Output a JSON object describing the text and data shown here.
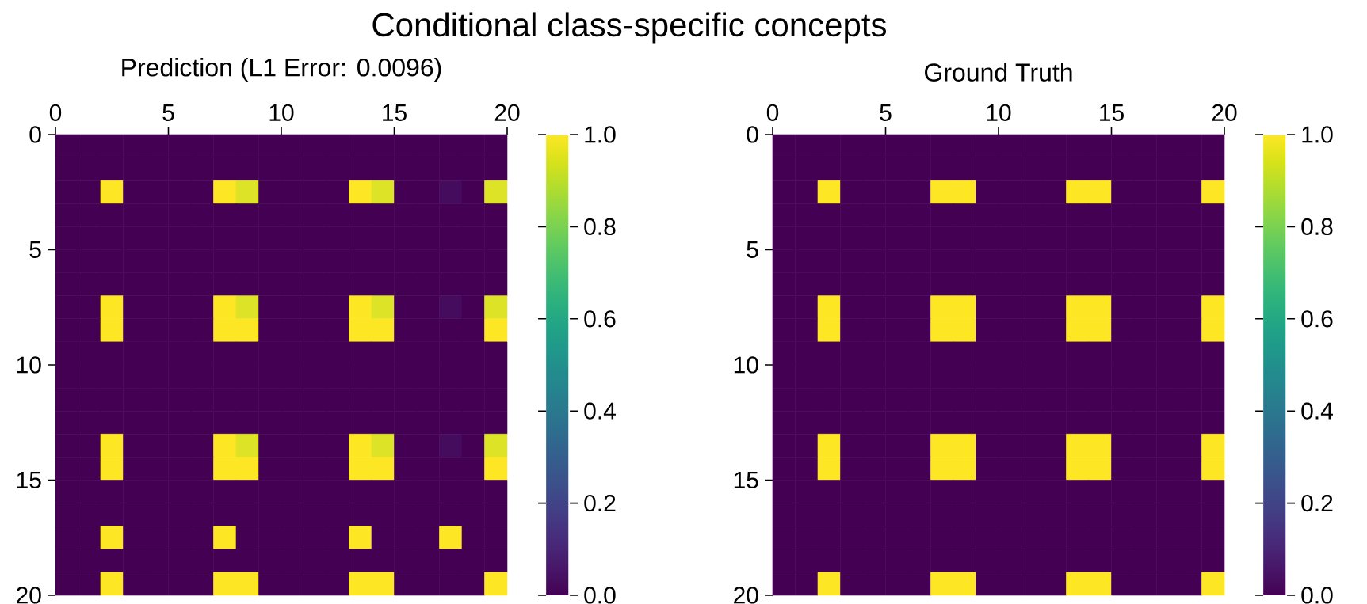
{
  "chart_data": [
    {
      "type": "heatmap",
      "title": "Conditional class-specific concepts",
      "subtitle": "Prediction (L1 Error: 0.0096)",
      "x": [
        0.5,
        1.5,
        2.5,
        3.5,
        4.5,
        5.5,
        6.5,
        7.5,
        8.5,
        9.5,
        10.5,
        11.5,
        12.5,
        13.5,
        14.5,
        15.5,
        16.5,
        17.5,
        18.5,
        19.5
      ],
      "y": [
        0.5,
        1.5,
        2.5,
        3.5,
        4.5,
        5.5,
        6.5,
        7.5,
        8.5,
        9.5,
        10.5,
        11.5,
        12.5,
        13.5,
        14.5,
        15.5,
        16.5,
        17.5,
        18.5,
        19.5
      ],
      "xlim": [
        0,
        20
      ],
      "xticks": [
        0,
        5,
        10,
        15,
        20
      ],
      "ylim": [
        20,
        0
      ],
      "yticks": [
        0,
        5,
        10,
        15,
        20
      ],
      "clim": [
        0,
        1
      ],
      "cticks": [
        {
          "value": 0,
          "label": "0.0"
        },
        {
          "value": 0.2,
          "label": "0.2"
        },
        {
          "value": 0.4,
          "label": "0.4"
        },
        {
          "value": 0.6,
          "label": "0.6"
        },
        {
          "value": 0.8,
          "label": "0.8"
        },
        {
          "value": 1,
          "label": "1.0"
        }
      ],
      "cells": [
        [
          0,
          0,
          0,
          0,
          0,
          0,
          0,
          0,
          0,
          0,
          0,
          0,
          0,
          0,
          0,
          0,
          0,
          0,
          0,
          0
        ],
        [
          0,
          0,
          0,
          0,
          0,
          0,
          0,
          0,
          0,
          0,
          0,
          0,
          0,
          0,
          0,
          0,
          0,
          0,
          0,
          0
        ],
        [
          0,
          0,
          1,
          0,
          0,
          0,
          0,
          1,
          0.95,
          0,
          0,
          0,
          0,
          1,
          0.95,
          0,
          0,
          0.03,
          0,
          0.95
        ],
        [
          0,
          0,
          0,
          0,
          0,
          0,
          0,
          0,
          0,
          0,
          0,
          0,
          0,
          0,
          0,
          0,
          0,
          0,
          0,
          0
        ],
        [
          0,
          0,
          0,
          0,
          0,
          0,
          0,
          0,
          0,
          0,
          0,
          0,
          0,
          0,
          0,
          0,
          0,
          0,
          0,
          0
        ],
        [
          0,
          0,
          0,
          0,
          0,
          0,
          0,
          0,
          0,
          0,
          0,
          0,
          0,
          0,
          0,
          0,
          0,
          0,
          0,
          0
        ],
        [
          0,
          0,
          0,
          0,
          0,
          0,
          0,
          0,
          0,
          0,
          0,
          0,
          0,
          0,
          0,
          0,
          0,
          0,
          0,
          0
        ],
        [
          0,
          0,
          1,
          0,
          0,
          0,
          0,
          1,
          0.95,
          0,
          0,
          0,
          0,
          1,
          0.95,
          0,
          0,
          0.03,
          0,
          0.95
        ],
        [
          0,
          0,
          1,
          0,
          0,
          0,
          0,
          1,
          1,
          0,
          0,
          0,
          0,
          1,
          1,
          0,
          0,
          0,
          0,
          1
        ],
        [
          0,
          0,
          0,
          0,
          0,
          0,
          0,
          0,
          0,
          0,
          0,
          0,
          0,
          0,
          0,
          0,
          0,
          0,
          0,
          0
        ],
        [
          0,
          0,
          0,
          0,
          0,
          0,
          0,
          0,
          0,
          0,
          0,
          0,
          0,
          0,
          0,
          0,
          0,
          0,
          0,
          0
        ],
        [
          0,
          0,
          0,
          0,
          0,
          0,
          0,
          0,
          0,
          0,
          0,
          0,
          0,
          0,
          0,
          0,
          0,
          0,
          0,
          0
        ],
        [
          0,
          0,
          0,
          0,
          0,
          0,
          0,
          0,
          0,
          0,
          0,
          0,
          0,
          0,
          0,
          0,
          0,
          0,
          0,
          0
        ],
        [
          0,
          0,
          1,
          0,
          0,
          0,
          0,
          1,
          0.95,
          0,
          0,
          0,
          0,
          1,
          0.95,
          0,
          0,
          0.03,
          0,
          0.95
        ],
        [
          0,
          0,
          1,
          0,
          0,
          0,
          0,
          1,
          1,
          0,
          0,
          0,
          0,
          1,
          1,
          0,
          0,
          0,
          0,
          1
        ],
        [
          0,
          0,
          0,
          0,
          0,
          0,
          0,
          0,
          0,
          0,
          0,
          0,
          0,
          0,
          0,
          0,
          0,
          0,
          0,
          0
        ],
        [
          0,
          0,
          0,
          0,
          0,
          0,
          0,
          0,
          0,
          0,
          0,
          0,
          0,
          0,
          0,
          0,
          0,
          0,
          0,
          0
        ],
        [
          0,
          0,
          1,
          0,
          0,
          0,
          0,
          1,
          0,
          0,
          0,
          0,
          0,
          1,
          0,
          0,
          0,
          1,
          0,
          0
        ],
        [
          0,
          0,
          0,
          0,
          0,
          0,
          0,
          0,
          0,
          0,
          0,
          0,
          0,
          0,
          0,
          0,
          0,
          0,
          0,
          0
        ],
        [
          0,
          0,
          1,
          0,
          0,
          0,
          0,
          1,
          1,
          0,
          0,
          0,
          0,
          1,
          1,
          0,
          0,
          0,
          0,
          1
        ]
      ]
    },
    {
      "type": "heatmap",
      "title": "Ground Truth",
      "x": [
        0.5,
        1.5,
        2.5,
        3.5,
        4.5,
        5.5,
        6.5,
        7.5,
        8.5,
        9.5,
        10.5,
        11.5,
        12.5,
        13.5,
        14.5,
        15.5,
        16.5,
        17.5,
        18.5,
        19.5
      ],
      "y": [
        0.5,
        1.5,
        2.5,
        3.5,
        4.5,
        5.5,
        6.5,
        7.5,
        8.5,
        9.5,
        10.5,
        11.5,
        12.5,
        13.5,
        14.5,
        15.5,
        16.5,
        17.5,
        18.5,
        19.5
      ],
      "xlim": [
        0,
        20
      ],
      "xticks": [
        0,
        5,
        10,
        15,
        20
      ],
      "ylim": [
        20,
        0
      ],
      "yticks": [
        0,
        5,
        10,
        15,
        20
      ],
      "clim": [
        0,
        1
      ],
      "cticks": [
        {
          "value": 0,
          "label": "0.0"
        },
        {
          "value": 0.2,
          "label": "0.2"
        },
        {
          "value": 0.4,
          "label": "0.4"
        },
        {
          "value": 0.6,
          "label": "0.6"
        },
        {
          "value": 0.8,
          "label": "0.8"
        },
        {
          "value": 1,
          "label": "1.0"
        }
      ],
      "cells": [
        [
          0,
          0,
          0,
          0,
          0,
          0,
          0,
          0,
          0,
          0,
          0,
          0,
          0,
          0,
          0,
          0,
          0,
          0,
          0,
          0
        ],
        [
          0,
          0,
          0,
          0,
          0,
          0,
          0,
          0,
          0,
          0,
          0,
          0,
          0,
          0,
          0,
          0,
          0,
          0,
          0,
          0
        ],
        [
          0,
          0,
          1,
          0,
          0,
          0,
          0,
          1,
          1,
          0,
          0,
          0,
          0,
          1,
          1,
          0,
          0,
          0,
          0,
          1
        ],
        [
          0,
          0,
          0,
          0,
          0,
          0,
          0,
          0,
          0,
          0,
          0,
          0,
          0,
          0,
          0,
          0,
          0,
          0,
          0,
          0
        ],
        [
          0,
          0,
          0,
          0,
          0,
          0,
          0,
          0,
          0,
          0,
          0,
          0,
          0,
          0,
          0,
          0,
          0,
          0,
          0,
          0
        ],
        [
          0,
          0,
          0,
          0,
          0,
          0,
          0,
          0,
          0,
          0,
          0,
          0,
          0,
          0,
          0,
          0,
          0,
          0,
          0,
          0
        ],
        [
          0,
          0,
          0,
          0,
          0,
          0,
          0,
          0,
          0,
          0,
          0,
          0,
          0,
          0,
          0,
          0,
          0,
          0,
          0,
          0
        ],
        [
          0,
          0,
          1,
          0,
          0,
          0,
          0,
          1,
          1,
          0,
          0,
          0,
          0,
          1,
          1,
          0,
          0,
          0,
          0,
          1
        ],
        [
          0,
          0,
          1,
          0,
          0,
          0,
          0,
          1,
          1,
          0,
          0,
          0,
          0,
          1,
          1,
          0,
          0,
          0,
          0,
          1
        ],
        [
          0,
          0,
          0,
          0,
          0,
          0,
          0,
          0,
          0,
          0,
          0,
          0,
          0,
          0,
          0,
          0,
          0,
          0,
          0,
          0
        ],
        [
          0,
          0,
          0,
          0,
          0,
          0,
          0,
          0,
          0,
          0,
          0,
          0,
          0,
          0,
          0,
          0,
          0,
          0,
          0,
          0
        ],
        [
          0,
          0,
          0,
          0,
          0,
          0,
          0,
          0,
          0,
          0,
          0,
          0,
          0,
          0,
          0,
          0,
          0,
          0,
          0,
          0
        ],
        [
          0,
          0,
          0,
          0,
          0,
          0,
          0,
          0,
          0,
          0,
          0,
          0,
          0,
          0,
          0,
          0,
          0,
          0,
          0,
          0
        ],
        [
          0,
          0,
          1,
          0,
          0,
          0,
          0,
          1,
          1,
          0,
          0,
          0,
          0,
          1,
          1,
          0,
          0,
          0,
          0,
          1
        ],
        [
          0,
          0,
          1,
          0,
          0,
          0,
          0,
          1,
          1,
          0,
          0,
          0,
          0,
          1,
          1,
          0,
          0,
          0,
          0,
          1
        ],
        [
          0,
          0,
          0,
          0,
          0,
          0,
          0,
          0,
          0,
          0,
          0,
          0,
          0,
          0,
          0,
          0,
          0,
          0,
          0,
          0
        ],
        [
          0,
          0,
          0,
          0,
          0,
          0,
          0,
          0,
          0,
          0,
          0,
          0,
          0,
          0,
          0,
          0,
          0,
          0,
          0,
          0
        ],
        [
          0,
          0,
          0,
          0,
          0,
          0,
          0,
          0,
          0,
          0,
          0,
          0,
          0,
          0,
          0,
          0,
          0,
          0,
          0,
          0
        ],
        [
          0,
          0,
          0,
          0,
          0,
          0,
          0,
          0,
          0,
          0,
          0,
          0,
          0,
          0,
          0,
          0,
          0,
          0,
          0,
          0
        ],
        [
          0,
          0,
          1,
          0,
          0,
          0,
          0,
          1,
          1,
          0,
          0,
          0,
          0,
          1,
          1,
          0,
          0,
          0,
          0,
          1
        ]
      ]
    }
  ]
}
